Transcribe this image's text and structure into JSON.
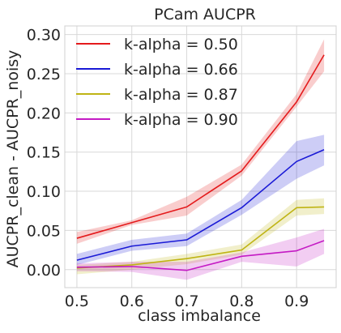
{
  "chart_data": {
    "type": "line",
    "title": "PCam AUCPR",
    "xlabel": "class imbalance",
    "ylabel": "AUCPR_clean - AUCPR_noisy",
    "x": [
      0.5,
      0.6,
      0.7,
      0.8,
      0.9,
      0.95
    ],
    "xlim": [
      0.478,
      0.972
    ],
    "ylim": [
      -0.023,
      0.311
    ],
    "x_ticks": [
      "0.5",
      "0.6",
      "0.7",
      "0.8",
      "0.9"
    ],
    "y_ticks": [
      "0.00",
      "0.05",
      "0.10",
      "0.15",
      "0.20",
      "0.25",
      "0.30"
    ],
    "grid": true,
    "legend_position": "top-left",
    "series": [
      {
        "name": "k-alpha = 0.50",
        "color": "#e41a1c",
        "values": [
          0.04,
          0.06,
          0.08,
          0.126,
          0.214,
          0.274
        ],
        "lower": [
          0.033,
          0.057,
          0.069,
          0.12,
          0.208,
          0.253
        ],
        "upper": [
          0.048,
          0.063,
          0.093,
          0.134,
          0.224,
          0.294
        ]
      },
      {
        "name": "k-alpha = 0.66",
        "color": "#1a1ad6",
        "values": [
          0.012,
          0.03,
          0.038,
          0.079,
          0.138,
          0.153
        ],
        "lower": [
          0.006,
          0.024,
          0.03,
          0.07,
          0.116,
          0.133
        ],
        "upper": [
          0.02,
          0.038,
          0.046,
          0.089,
          0.164,
          0.172
        ]
      },
      {
        "name": "k-alpha = 0.87",
        "color": "#bfb414",
        "values": [
          0.002,
          0.006,
          0.014,
          0.025,
          0.079,
          0.08
        ],
        "lower": [
          -0.006,
          0.0,
          0.007,
          0.019,
          0.069,
          0.071
        ],
        "upper": [
          0.006,
          0.01,
          0.02,
          0.032,
          0.089,
          0.091
        ]
      },
      {
        "name": "k-alpha = 0.90",
        "color": "#c41ac4",
        "values": [
          0.003,
          0.004,
          -0.001,
          0.017,
          0.024,
          0.037
        ],
        "lower": [
          -0.002,
          -0.003,
          -0.013,
          0.01,
          0.004,
          0.02
        ],
        "upper": [
          0.008,
          0.01,
          0.01,
          0.022,
          0.041,
          0.052
        ]
      }
    ]
  }
}
